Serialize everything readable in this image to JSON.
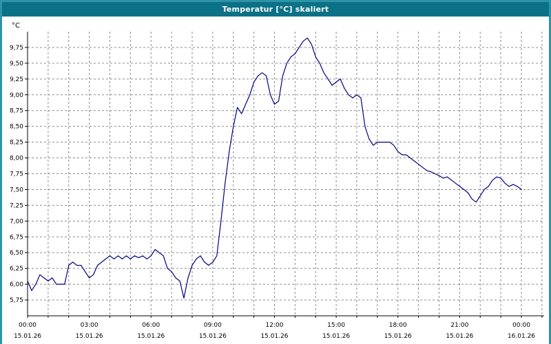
{
  "window": {
    "title": "Temperatur [°C] skaliert"
  },
  "colors": {
    "titlebar": "#0b7187",
    "frame": "#2e93a6",
    "plot_bg": "#ffffff",
    "grid": "#8a8a8a",
    "axis": "#000000",
    "line": "#000080",
    "tick_text": "#000000"
  },
  "chart_data": {
    "type": "line",
    "title": "Temperatur [°C] skaliert",
    "ylabel": "°C",
    "legend": "none",
    "grid": "dashed",
    "ylim": [
      5.5,
      10.0
    ],
    "xlim_hours": [
      0,
      24
    ],
    "hour_grid_max": 25,
    "yticks": [
      {
        "v": 5.75,
        "label": "5,75"
      },
      {
        "v": 6.0,
        "label": "6,00"
      },
      {
        "v": 6.25,
        "label": "6,25"
      },
      {
        "v": 6.5,
        "label": "6,50"
      },
      {
        "v": 6.75,
        "label": "6,75"
      },
      {
        "v": 7.0,
        "label": "7,00"
      },
      {
        "v": 7.25,
        "label": "7,25"
      },
      {
        "v": 7.5,
        "label": "7,50"
      },
      {
        "v": 7.75,
        "label": "7,75"
      },
      {
        "v": 8.0,
        "label": "8,00"
      },
      {
        "v": 8.25,
        "label": "8,25"
      },
      {
        "v": 8.5,
        "label": "8,50"
      },
      {
        "v": 8.75,
        "label": "8,75"
      },
      {
        "v": 9.0,
        "label": "9,00"
      },
      {
        "v": 9.25,
        "label": "9,25"
      },
      {
        "v": 9.5,
        "label": "9,50"
      },
      {
        "v": 9.75,
        "label": "9,75"
      }
    ],
    "xticks": [
      {
        "h": 0,
        "time": "00:00",
        "date": "15.01.26"
      },
      {
        "h": 3,
        "time": "03:00",
        "date": "15.01.26"
      },
      {
        "h": 6,
        "time": "06:00",
        "date": "15.01.26"
      },
      {
        "h": 9,
        "time": "09:00",
        "date": "15.01.26"
      },
      {
        "h": 12,
        "time": "12:00",
        "date": "15.01.26"
      },
      {
        "h": 15,
        "time": "15:00",
        "date": "15.01.26"
      },
      {
        "h": 18,
        "time": "18:00",
        "date": "15.01.26"
      },
      {
        "h": 21,
        "time": "21:00",
        "date": "15.01.26"
      },
      {
        "h": 24,
        "time": "00:00",
        "date": "16.01.26"
      }
    ],
    "series": [
      {
        "name": "Temperatur",
        "color": "#000080",
        "points": [
          [
            0.0,
            6.05
          ],
          [
            0.2,
            5.9
          ],
          [
            0.4,
            6.0
          ],
          [
            0.6,
            6.15
          ],
          [
            0.8,
            6.1
          ],
          [
            1.0,
            6.05
          ],
          [
            1.2,
            6.1
          ],
          [
            1.4,
            6.0
          ],
          [
            1.6,
            6.0
          ],
          [
            1.8,
            6.0
          ],
          [
            2.0,
            6.3
          ],
          [
            2.2,
            6.35
          ],
          [
            2.4,
            6.3
          ],
          [
            2.6,
            6.3
          ],
          [
            2.8,
            6.2
          ],
          [
            3.0,
            6.1
          ],
          [
            3.2,
            6.15
          ],
          [
            3.4,
            6.3
          ],
          [
            3.6,
            6.35
          ],
          [
            3.8,
            6.4
          ],
          [
            4.0,
            6.45
          ],
          [
            4.2,
            6.4
          ],
          [
            4.4,
            6.45
          ],
          [
            4.6,
            6.4
          ],
          [
            4.8,
            6.45
          ],
          [
            5.0,
            6.4
          ],
          [
            5.2,
            6.45
          ],
          [
            5.4,
            6.42
          ],
          [
            5.6,
            6.45
          ],
          [
            5.8,
            6.4
          ],
          [
            6.0,
            6.45
          ],
          [
            6.2,
            6.55
          ],
          [
            6.4,
            6.5
          ],
          [
            6.6,
            6.45
          ],
          [
            6.8,
            6.25
          ],
          [
            7.0,
            6.2
          ],
          [
            7.2,
            6.1
          ],
          [
            7.4,
            6.05
          ],
          [
            7.6,
            5.78
          ],
          [
            7.8,
            6.1
          ],
          [
            8.0,
            6.3
          ],
          [
            8.2,
            6.4
          ],
          [
            8.4,
            6.45
          ],
          [
            8.6,
            6.35
          ],
          [
            8.8,
            6.3
          ],
          [
            9.0,
            6.35
          ],
          [
            9.2,
            6.45
          ],
          [
            9.4,
            7.0
          ],
          [
            9.6,
            7.6
          ],
          [
            9.8,
            8.1
          ],
          [
            10.0,
            8.5
          ],
          [
            10.2,
            8.8
          ],
          [
            10.4,
            8.7
          ],
          [
            10.6,
            8.85
          ],
          [
            10.8,
            9.0
          ],
          [
            11.0,
            9.2
          ],
          [
            11.2,
            9.3
          ],
          [
            11.4,
            9.35
          ],
          [
            11.6,
            9.3
          ],
          [
            11.8,
            9.0
          ],
          [
            12.0,
            8.85
          ],
          [
            12.2,
            8.9
          ],
          [
            12.4,
            9.3
          ],
          [
            12.6,
            9.5
          ],
          [
            12.8,
            9.6
          ],
          [
            13.0,
            9.65
          ],
          [
            13.2,
            9.75
          ],
          [
            13.4,
            9.85
          ],
          [
            13.6,
            9.9
          ],
          [
            13.8,
            9.8
          ],
          [
            14.0,
            9.6
          ],
          [
            14.2,
            9.5
          ],
          [
            14.4,
            9.35
          ],
          [
            14.6,
            9.25
          ],
          [
            14.8,
            9.15
          ],
          [
            15.0,
            9.2
          ],
          [
            15.2,
            9.25
          ],
          [
            15.4,
            9.1
          ],
          [
            15.6,
            9.0
          ],
          [
            15.8,
            8.95
          ],
          [
            16.0,
            9.0
          ],
          [
            16.2,
            8.95
          ],
          [
            16.4,
            8.5
          ],
          [
            16.6,
            8.3
          ],
          [
            16.8,
            8.2
          ],
          [
            17.0,
            8.25
          ],
          [
            17.2,
            8.25
          ],
          [
            17.4,
            8.25
          ],
          [
            17.6,
            8.25
          ],
          [
            17.8,
            8.2
          ],
          [
            18.0,
            8.1
          ],
          [
            18.2,
            8.05
          ],
          [
            18.4,
            8.05
          ],
          [
            18.6,
            8.0
          ],
          [
            18.8,
            7.95
          ],
          [
            19.0,
            7.9
          ],
          [
            19.2,
            7.85
          ],
          [
            19.4,
            7.8
          ],
          [
            19.6,
            7.78
          ],
          [
            19.8,
            7.75
          ],
          [
            20.0,
            7.72
          ],
          [
            20.2,
            7.68
          ],
          [
            20.4,
            7.7
          ],
          [
            20.6,
            7.65
          ],
          [
            20.8,
            7.6
          ],
          [
            21.0,
            7.55
          ],
          [
            21.2,
            7.5
          ],
          [
            21.4,
            7.45
          ],
          [
            21.6,
            7.35
          ],
          [
            21.8,
            7.3
          ],
          [
            22.0,
            7.4
          ],
          [
            22.2,
            7.5
          ],
          [
            22.4,
            7.55
          ],
          [
            22.6,
            7.65
          ],
          [
            22.8,
            7.7
          ],
          [
            23.0,
            7.68
          ],
          [
            23.2,
            7.6
          ],
          [
            23.4,
            7.55
          ],
          [
            23.6,
            7.58
          ],
          [
            23.8,
            7.55
          ],
          [
            24.0,
            7.5
          ]
        ]
      }
    ]
  }
}
